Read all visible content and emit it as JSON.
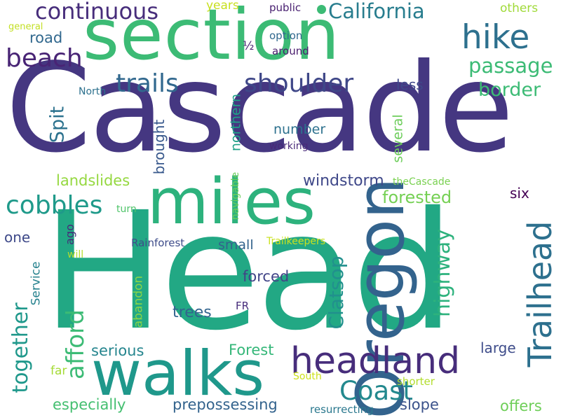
{
  "words": [
    {
      "text": "Cascade",
      "color": "#453781"
    },
    {
      "text": "Head",
      "color": "#22a884"
    },
    {
      "text": "section",
      "color": "#3cbb75"
    },
    {
      "text": "miles",
      "color": "#2db27d"
    },
    {
      "text": "walks",
      "color": "#1f988b"
    },
    {
      "text": "Oregon",
      "color": "#33638d"
    },
    {
      "text": "headland",
      "color": "#472d7b"
    },
    {
      "text": "Trailhead",
      "color": "#2d708e"
    },
    {
      "text": "hike",
      "color": "#2d708e"
    },
    {
      "text": "continuous",
      "color": "#472d7b"
    },
    {
      "text": "beach",
      "color": "#482475"
    },
    {
      "text": "California",
      "color": "#287d8e"
    },
    {
      "text": "trails",
      "color": "#31688e"
    },
    {
      "text": "shoulder",
      "color": "#3f4788"
    },
    {
      "text": "passage",
      "color": "#3cbb75"
    },
    {
      "text": "border",
      "color": "#3cbb75"
    },
    {
      "text": "cobbles",
      "color": "#1f9a8a"
    },
    {
      "text": "Coast",
      "color": "#23898e"
    },
    {
      "text": "afford",
      "color": "#3cbb75"
    },
    {
      "text": "together",
      "color": "#1f988b"
    },
    {
      "text": "highway",
      "color": "#2db27d"
    },
    {
      "text": "Clatsop",
      "color": "#21908d"
    },
    {
      "text": "Spit",
      "color": "#2c728e"
    },
    {
      "text": "windstorm",
      "color": "#3f4889"
    },
    {
      "text": "forested",
      "color": "#75d054"
    },
    {
      "text": "landslides",
      "color": "#95d840"
    },
    {
      "text": "number",
      "color": "#2d718e"
    },
    {
      "text": "less",
      "color": "#3f4889"
    },
    {
      "text": "brought",
      "color": "#38588c"
    },
    {
      "text": "northern",
      "color": "#1fa187"
    },
    {
      "text": "several",
      "color": "#6ccd5a"
    },
    {
      "text": "road",
      "color": "#31688e"
    },
    {
      "text": "years",
      "color": "#c8e020"
    },
    {
      "text": "public",
      "color": "#481f70"
    },
    {
      "text": "others",
      "color": "#a0da39"
    },
    {
      "text": "general",
      "color": "#c2df23"
    },
    {
      "text": "option",
      "color": "#31688e"
    },
    {
      "text": "around",
      "color": "#481a6c"
    },
    {
      "text": "½",
      "color": "#482173"
    },
    {
      "text": "North",
      "color": "#2d718e"
    },
    {
      "text": "working",
      "color": "#482878"
    },
    {
      "text": "navigable",
      "color": "#6ccd5a"
    },
    {
      "text": "theCascade",
      "color": "#7ad151"
    },
    {
      "text": "six",
      "color": "#440154"
    },
    {
      "text": "turn",
      "color": "#50c46a"
    },
    {
      "text": "one",
      "color": "#3e4989"
    },
    {
      "text": "ago",
      "color": "#472a7a"
    },
    {
      "text": "will",
      "color": "#b5de2b"
    },
    {
      "text": "Rainforest",
      "color": "#3e4c8a"
    },
    {
      "text": "Trailkeepers",
      "color": "#cae11f"
    },
    {
      "text": "small",
      "color": "#33638d"
    },
    {
      "text": "Service",
      "color": "#26828e"
    },
    {
      "text": "abandon",
      "color": "#89d548"
    },
    {
      "text": "forced",
      "color": "#414487"
    },
    {
      "text": "FR",
      "color": "#472d7b"
    },
    {
      "text": "trees",
      "color": "#32648e"
    },
    {
      "text": "serious",
      "color": "#25858e"
    },
    {
      "text": "Forest",
      "color": "#35b779"
    },
    {
      "text": "large",
      "color": "#3e4c8a"
    },
    {
      "text": "far",
      "color": "#a5db36"
    },
    {
      "text": "South",
      "color": "#cde11d"
    },
    {
      "text": "shorter",
      "color": "#b2dd2d"
    },
    {
      "text": "especially",
      "color": "#44bf70"
    },
    {
      "text": "prepossessing",
      "color": "#33638d"
    },
    {
      "text": "resurrecting",
      "color": "#2a788e"
    },
    {
      "text": "slope",
      "color": "#3b528b"
    },
    {
      "text": "offers",
      "color": "#6ece58"
    }
  ],
  "dot_color": "#3cbb75"
}
